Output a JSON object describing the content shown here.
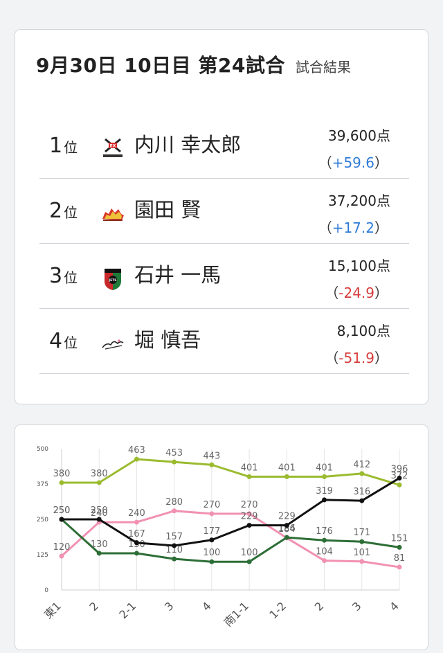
{
  "header": {
    "title": "9月30日  10日目  第24試合",
    "subtitle": "試合結果"
  },
  "results": [
    {
      "rank": "1",
      "rank_suffix": "位",
      "name": "内川 幸太郎",
      "points": "39,600点",
      "delta_open": "（",
      "delta": "+59.6",
      "delta_close": "）",
      "sign": "pos",
      "team_logo": "kazan-logo"
    },
    {
      "rank": "2",
      "rank_suffix": "位",
      "name": "園田 賢",
      "points": "37,200点",
      "delta_open": "（",
      "delta": "+17.2",
      "delta_close": "）",
      "sign": "pos",
      "team_logo": "drivens-logo"
    },
    {
      "rank": "3",
      "rank_suffix": "位",
      "name": "石井 一馬",
      "points": "15,100点",
      "delta_open": "（",
      "delta": "-24.9",
      "delta_close": "）",
      "sign": "neg",
      "team_logo": "jets-logo"
    },
    {
      "rank": "4",
      "rank_suffix": "位",
      "name": "堀 慎吾",
      "points": "8,100点",
      "delta_open": "（",
      "delta": "-51.9",
      "delta_close": "）",
      "sign": "neg",
      "team_logo": "sakura-logo"
    }
  ],
  "colors": {
    "positive": "#2f7bd6",
    "negative": "#d63c3c"
  },
  "chart_data": {
    "type": "line",
    "categories": [
      "東1",
      "2",
      "2-1",
      "3",
      "4",
      "南1-1",
      "1-2",
      "2",
      "3",
      "4"
    ],
    "ylim": [
      0,
      500
    ],
    "yticks": [
      "0",
      "125",
      "250",
      "375",
      "500"
    ],
    "grid": true,
    "series": [
      {
        "color": "#9bbb2f",
        "values": [
          380,
          380,
          463,
          453,
          443,
          401,
          401,
          401,
          412,
          372
        ]
      },
      {
        "color": "#f191b3",
        "values": [
          120,
          240,
          240,
          280,
          270,
          270,
          184,
          104,
          101,
          81
        ]
      },
      {
        "color": "#2d6e36",
        "values": [
          250,
          130,
          130,
          110,
          100,
          100,
          186,
          176,
          171,
          151
        ]
      },
      {
        "color": "#111111",
        "values": [
          250,
          250,
          167,
          157,
          177,
          229,
          229,
          319,
          316,
          396
        ]
      }
    ]
  }
}
